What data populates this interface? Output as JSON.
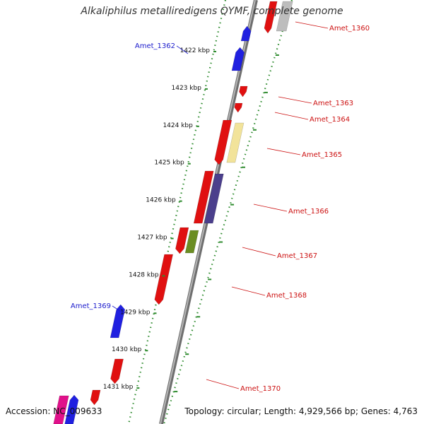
{
  "title": "Alkaliphilus metalliredigens QYMF, complete genome",
  "accession_text": "Accession: NC_009633",
  "topology_text": "Topology: circular; Length: 4,929,566 bp; Genes: 4,763",
  "colors": {
    "backbone": "#8a8a8a",
    "dots": "#2e8b2e",
    "forward_gene": "#2020e0",
    "reverse_gene": "#e01010",
    "label_forward": "#1a1acc",
    "label_reverse": "#cc1111",
    "feature_yellow": "#f2e39a",
    "feature_purple": "#4b3f8c",
    "feature_olive": "#6b8e23",
    "feature_gray": "#bdbdbd",
    "feature_magenta": "#e0108a"
  },
  "ticks": [
    {
      "label": "1422 kbp",
      "kbp": 1422
    },
    {
      "label": "1423 kbp",
      "kbp": 1423
    },
    {
      "label": "1424 kbp",
      "kbp": 1424
    },
    {
      "label": "1425 kbp",
      "kbp": 1425
    },
    {
      "label": "1426 kbp",
      "kbp": 1426
    },
    {
      "label": "1427 kbp",
      "kbp": 1427
    },
    {
      "label": "1428 kbp",
      "kbp": 1428
    },
    {
      "label": "1429 kbp",
      "kbp": 1429
    },
    {
      "label": "1430 kbp",
      "kbp": 1430
    },
    {
      "label": "1431 kbp",
      "kbp": 1431
    }
  ],
  "gene_labels": [
    {
      "name": "Amet_1360",
      "strand": "reverse"
    },
    {
      "name": "Amet_1362",
      "strand": "forward"
    },
    {
      "name": "Amet_1363",
      "strand": "reverse"
    },
    {
      "name": "Amet_1364",
      "strand": "reverse"
    },
    {
      "name": "Amet_1365",
      "strand": "reverse"
    },
    {
      "name": "Amet_1366",
      "strand": "reverse"
    },
    {
      "name": "Amet_1367",
      "strand": "reverse"
    },
    {
      "name": "Amet_1368",
      "strand": "reverse"
    },
    {
      "name": "Amet_1369",
      "strand": "forward"
    },
    {
      "name": "Amet_1370",
      "strand": "reverse"
    }
  ]
}
